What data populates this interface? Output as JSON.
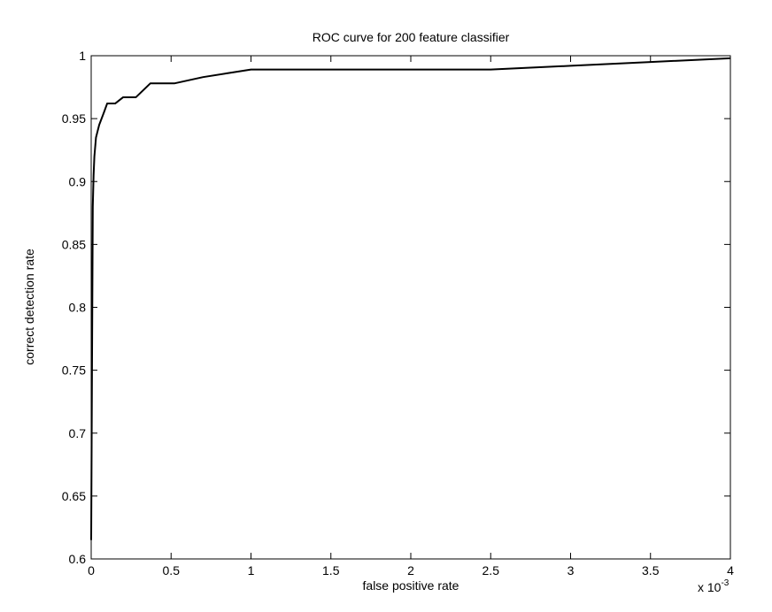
{
  "chart_data": {
    "type": "line",
    "title": "ROC curve for 200 feature classifier",
    "xlabel": "false positive rate",
    "ylabel": "correct detection rate",
    "x_multiplier_label": "x 10",
    "x_multiplier_exponent": "-3",
    "xlim": [
      0,
      4
    ],
    "ylim": [
      0.6,
      1
    ],
    "x_ticks": [
      "0",
      "0.5",
      "1",
      "1.5",
      "2",
      "2.5",
      "3",
      "3.5",
      "4"
    ],
    "y_ticks": [
      "0.6",
      "0.65",
      "0.7",
      "0.75",
      "0.8",
      "0.85",
      "0.9",
      "0.95",
      "1"
    ],
    "grid": false,
    "series": [
      {
        "color": "#000000",
        "x": [
          0,
          0.005,
          0.01,
          0.015,
          0.02,
          0.03,
          0.05,
          0.08,
          0.1,
          0.15,
          0.2,
          0.28,
          0.37,
          0.52,
          0.7,
          0.85,
          1.0,
          2.5,
          3.0,
          3.5,
          4.0
        ],
        "y": [
          0.615,
          0.75,
          0.88,
          0.905,
          0.92,
          0.935,
          0.945,
          0.955,
          0.962,
          0.962,
          0.967,
          0.967,
          0.978,
          0.978,
          0.983,
          0.986,
          0.989,
          0.989,
          0.992,
          0.995,
          0.998
        ]
      }
    ]
  }
}
